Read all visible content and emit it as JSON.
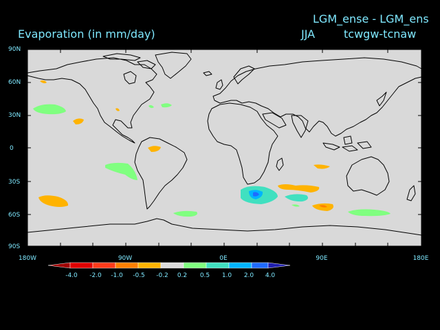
{
  "title": {
    "experiment": "LGM_ense - LGM_ens",
    "variable": "Evaporation (in mm/day)",
    "season": "JJA",
    "fields": "tcwgw-tcnaw"
  },
  "map": {
    "projection": "equirectangular",
    "land_color": "#d9d9d9",
    "coast_color": "#000000",
    "lat_labels": [
      "90N",
      "60N",
      "30N",
      "0",
      "30S",
      "60S",
      "90S"
    ],
    "lon_labels": [
      "180W",
      "90W",
      "0E",
      "90E",
      "180E"
    ]
  },
  "colorbar": {
    "labels": [
      "-4.0",
      "-2.0",
      "-1.0",
      "-0.5",
      "-0.2",
      "0.2",
      "0.5",
      "1.0",
      "2.0",
      "4.0"
    ],
    "colors": [
      "#a00000",
      "#e00000",
      "#ff3a1a",
      "#ff7f00",
      "#ffb300",
      "#dcdcdc",
      "#80ff80",
      "#40e0c0",
      "#00b4ff",
      "#1f6bff",
      "#2020b0"
    ]
  },
  "anomalies": [
    {
      "region": "North Pacific (30N)",
      "sign": "positive",
      "level": "0.2-0.5"
    },
    {
      "region": "Subtropical North Pacific",
      "sign": "negative",
      "level": "-0.5 to -0.2"
    },
    {
      "region": "Tropical Atlantic",
      "sign": "negative",
      "level": "-0.5 to -0.2"
    },
    {
      "region": "Southeast Pacific",
      "sign": "positive",
      "level": "0.2-0.5"
    },
    {
      "region": "South Pacific (45S)",
      "sign": "negative",
      "level": "-0.5 to -0.2"
    },
    {
      "region": "South Atlantic",
      "sign": "positive",
      "level": "0.2-0.5"
    },
    {
      "region": "South of Africa",
      "sign": "positive",
      "level": "0.5-2.0"
    },
    {
      "region": "South Indian Ocean",
      "sign": "negative",
      "level": "-0.5 to -0.2"
    },
    {
      "region": "Southern Ocean 60S",
      "sign": "positive",
      "level": "0.2-0.5"
    }
  ]
}
